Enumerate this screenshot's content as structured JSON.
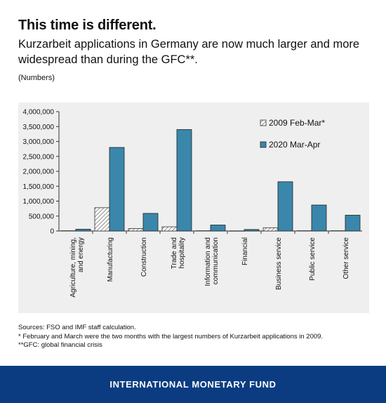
{
  "header": {
    "title": "This time is different.",
    "subtitle": "Kurzarbeit applications in Germany are now much larger and more widespread than during the GFC**.",
    "unit": "(Numbers)"
  },
  "notes": {
    "sources": "Sources: FSO and IMF staff calculation.",
    "note1": "* February and March were the two months with the largest numbers of Kurzarbeit applications in 2009.",
    "note2": "**GFC: global financial crisis"
  },
  "footer": {
    "text": "INTERNATIONAL MONETARY FUND"
  },
  "colors": {
    "footer_bg": "#0b3c81",
    "series_2020": "#3a87ab",
    "panel_bg": "#efefef"
  },
  "chart_data": {
    "type": "bar",
    "categories": [
      "Agriculture, mining, and energy",
      "Manufacturing",
      "Construction",
      "Trade and hospitality",
      "Information and communication",
      "Financial",
      "Business service",
      "Public service",
      "Other service"
    ],
    "series": [
      {
        "name": "2009 Feb-Mar*",
        "pattern": "hatched",
        "values": [
          10000,
          780000,
          80000,
          140000,
          10000,
          5000,
          110000,
          10000,
          10000
        ]
      },
      {
        "name": "2020 Mar-Apr",
        "color": "#3a87ab",
        "values": [
          60000,
          2800000,
          590000,
          3400000,
          200000,
          50000,
          1650000,
          870000,
          530000
        ]
      }
    ],
    "yticks": [
      "0",
      "500,000",
      "1,000,000",
      "1,500,000",
      "2,000,000",
      "2,500,000",
      "3,000,000",
      "3,500,000",
      "4,000,000"
    ],
    "ylim": [
      0,
      4000000
    ],
    "legend_position": "top-right",
    "grid": false
  }
}
